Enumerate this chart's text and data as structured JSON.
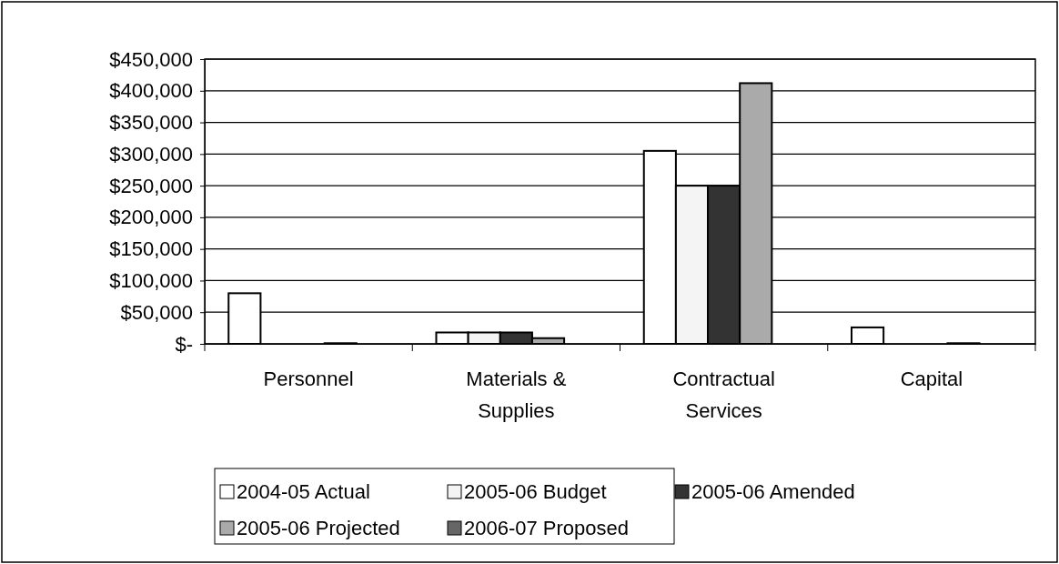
{
  "chart_data": {
    "type": "bar",
    "categories": [
      "Personnel",
      "Materials & Supplies",
      "Contractual Services",
      "Capital"
    ],
    "series": [
      {
        "name": "2004-05 Actual",
        "color": "#ffffff",
        "values": [
          80000,
          18000,
          305000,
          26000
        ]
      },
      {
        "name": "2005-06 Budget",
        "color": "#f4f4f4",
        "values": [
          0,
          18000,
          250000,
          0
        ]
      },
      {
        "name": "2005-06 Amended",
        "color": "#333333",
        "values": [
          0,
          18000,
          250000,
          0
        ]
      },
      {
        "name": "2005-06 Projected",
        "color": "#aaaaaa",
        "values": [
          1000,
          9000,
          412000,
          1000
        ]
      },
      {
        "name": "2006-07 Proposed",
        "color": "#666666",
        "values": [
          0,
          0,
          0,
          0
        ]
      }
    ],
    "ylim": [
      0,
      450000
    ],
    "yticks": [
      {
        "value": 0,
        "label": "$-"
      },
      {
        "value": 50000,
        "label": "$50,000"
      },
      {
        "value": 100000,
        "label": "$100,000"
      },
      {
        "value": 150000,
        "label": "$150,000"
      },
      {
        "value": 200000,
        "label": "$200,000"
      },
      {
        "value": 250000,
        "label": "$250,000"
      },
      {
        "value": 300000,
        "label": "$300,000"
      },
      {
        "value": 350000,
        "label": "$350,000"
      },
      {
        "value": 400000,
        "label": "$400,000"
      },
      {
        "value": 450000,
        "label": "$450,000"
      }
    ],
    "grid": "y",
    "legend": "bottom"
  }
}
